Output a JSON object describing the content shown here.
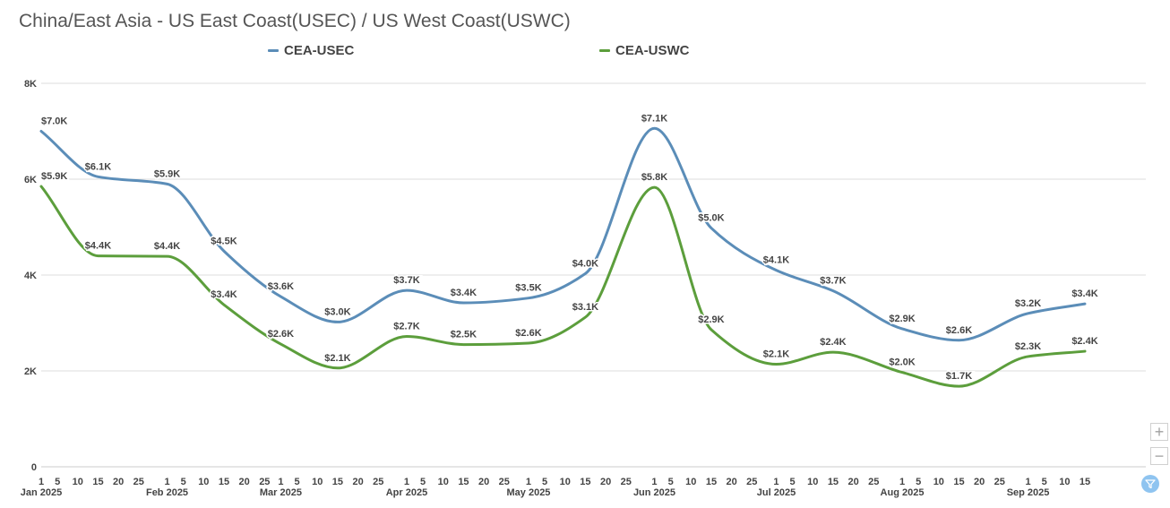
{
  "title": "China/East Asia - US East Coast(USEC) / US West Coast(USWC)",
  "legend": [
    {
      "label": "CEA-USEC",
      "color": "#5b8db8"
    },
    {
      "label": "CEA-USWC",
      "color": "#5c9e3c"
    }
  ],
  "controls": {
    "zoom_in": "+",
    "zoom_out": "−"
  },
  "chart_data": {
    "type": "line",
    "title": "China/East Asia - US East Coast(USEC) / US West Coast(USWC)",
    "xlabel": "",
    "ylabel": "",
    "ylim": [
      0,
      8000
    ],
    "y_ticks": [
      {
        "value": 0,
        "label": "0"
      },
      {
        "value": 2000,
        "label": "2K"
      },
      {
        "value": 4000,
        "label": "4K"
      },
      {
        "value": 6000,
        "label": "6K"
      },
      {
        "value": 8000,
        "label": "8K"
      }
    ],
    "xlim": [
      "2025-01-01",
      "2025-09-30"
    ],
    "x_ticks": [
      "2025-01-01",
      "2025-01-05",
      "2025-01-10",
      "2025-01-15",
      "2025-01-20",
      "2025-01-25",
      "2025-02-01",
      "2025-02-05",
      "2025-02-10",
      "2025-02-15",
      "2025-02-20",
      "2025-02-25",
      "2025-03-01",
      "2025-03-05",
      "2025-03-10",
      "2025-03-15",
      "2025-03-20",
      "2025-03-25",
      "2025-04-01",
      "2025-04-05",
      "2025-04-10",
      "2025-04-15",
      "2025-04-20",
      "2025-04-25",
      "2025-05-01",
      "2025-05-05",
      "2025-05-10",
      "2025-05-15",
      "2025-05-20",
      "2025-05-25",
      "2025-06-01",
      "2025-06-05",
      "2025-06-10",
      "2025-06-15",
      "2025-06-20",
      "2025-06-25",
      "2025-07-01",
      "2025-07-05",
      "2025-07-10",
      "2025-07-15",
      "2025-07-20",
      "2025-07-25",
      "2025-08-01",
      "2025-08-05",
      "2025-08-10",
      "2025-08-15",
      "2025-08-20",
      "2025-08-25",
      "2025-09-01",
      "2025-09-05",
      "2025-09-10",
      "2025-09-15"
    ],
    "month_labels": [
      {
        "date": "2025-01-01",
        "label": "Jan 2025"
      },
      {
        "date": "2025-02-01",
        "label": "Feb 2025"
      },
      {
        "date": "2025-03-01",
        "label": "Mar 2025"
      },
      {
        "date": "2025-04-01",
        "label": "Apr 2025"
      },
      {
        "date": "2025-05-01",
        "label": "May 2025"
      },
      {
        "date": "2025-06-01",
        "label": "Jun 2025"
      },
      {
        "date": "2025-07-01",
        "label": "Jul 2025"
      },
      {
        "date": "2025-08-01",
        "label": "Aug 2025"
      },
      {
        "date": "2025-09-01",
        "label": "Sep 2025"
      }
    ],
    "grid": true,
    "legend_position": "top-left",
    "series": [
      {
        "name": "CEA-USEC",
        "color": "#5b8db8",
        "label_offset": 0,
        "points": [
          {
            "x": "2025-01-01",
            "y": 7000,
            "label": "$7.0K"
          },
          {
            "x": "2025-01-15",
            "y": 6050,
            "label": "$6.1K"
          },
          {
            "x": "2025-02-01",
            "y": 5900,
            "label": "$5.9K"
          },
          {
            "x": "2025-02-15",
            "y": 4500,
            "label": "$4.5K"
          },
          {
            "x": "2025-03-01",
            "y": 3550,
            "label": "$3.6K"
          },
          {
            "x": "2025-03-15",
            "y": 3020,
            "label": "$3.0K"
          },
          {
            "x": "2025-04-01",
            "y": 3680,
            "label": "$3.7K"
          },
          {
            "x": "2025-04-15",
            "y": 3420,
            "label": "$3.4K"
          },
          {
            "x": "2025-05-01",
            "y": 3520,
            "label": "$3.5K"
          },
          {
            "x": "2025-05-15",
            "y": 4030,
            "label": "$4.0K"
          },
          {
            "x": "2025-06-01",
            "y": 7060,
            "label": "$7.1K"
          },
          {
            "x": "2025-06-15",
            "y": 4980,
            "label": "$5.0K"
          },
          {
            "x": "2025-07-01",
            "y": 4100,
            "label": "$4.1K"
          },
          {
            "x": "2025-07-15",
            "y": 3670,
            "label": "$3.7K"
          },
          {
            "x": "2025-08-01",
            "y": 2880,
            "label": "$2.9K"
          },
          {
            "x": "2025-08-15",
            "y": 2640,
            "label": "$2.6K"
          },
          {
            "x": "2025-09-01",
            "y": 3200,
            "label": "$3.2K"
          },
          {
            "x": "2025-09-15",
            "y": 3400,
            "label": "$3.4K"
          }
        ]
      },
      {
        "name": "CEA-USWC",
        "color": "#5c9e3c",
        "label_offset": 1,
        "points": [
          {
            "x": "2025-01-01",
            "y": 5850,
            "label": "$5.9K"
          },
          {
            "x": "2025-01-15",
            "y": 4400,
            "label": "$4.4K"
          },
          {
            "x": "2025-02-01",
            "y": 4390,
            "label": "$4.4K"
          },
          {
            "x": "2025-02-15",
            "y": 3380,
            "label": "$3.4K"
          },
          {
            "x": "2025-03-01",
            "y": 2560,
            "label": "$2.6K"
          },
          {
            "x": "2025-03-15",
            "y": 2060,
            "label": "$2.1K"
          },
          {
            "x": "2025-04-01",
            "y": 2720,
            "label": "$2.7K"
          },
          {
            "x": "2025-04-15",
            "y": 2550,
            "label": "$2.5K"
          },
          {
            "x": "2025-05-01",
            "y": 2580,
            "label": "$2.6K"
          },
          {
            "x": "2025-05-15",
            "y": 3120,
            "label": "$3.1K"
          },
          {
            "x": "2025-06-01",
            "y": 5830,
            "label": "$5.8K"
          },
          {
            "x": "2025-06-15",
            "y": 2860,
            "label": "$2.9K"
          },
          {
            "x": "2025-07-01",
            "y": 2140,
            "label": "$2.1K"
          },
          {
            "x": "2025-07-15",
            "y": 2390,
            "label": "$2.4K"
          },
          {
            "x": "2025-08-01",
            "y": 1970,
            "label": "$2.0K"
          },
          {
            "x": "2025-08-15",
            "y": 1680,
            "label": "$1.7K"
          },
          {
            "x": "2025-09-01",
            "y": 2300,
            "label": "$2.3K"
          },
          {
            "x": "2025-09-15",
            "y": 2410,
            "label": "$2.4K"
          }
        ]
      }
    ]
  }
}
